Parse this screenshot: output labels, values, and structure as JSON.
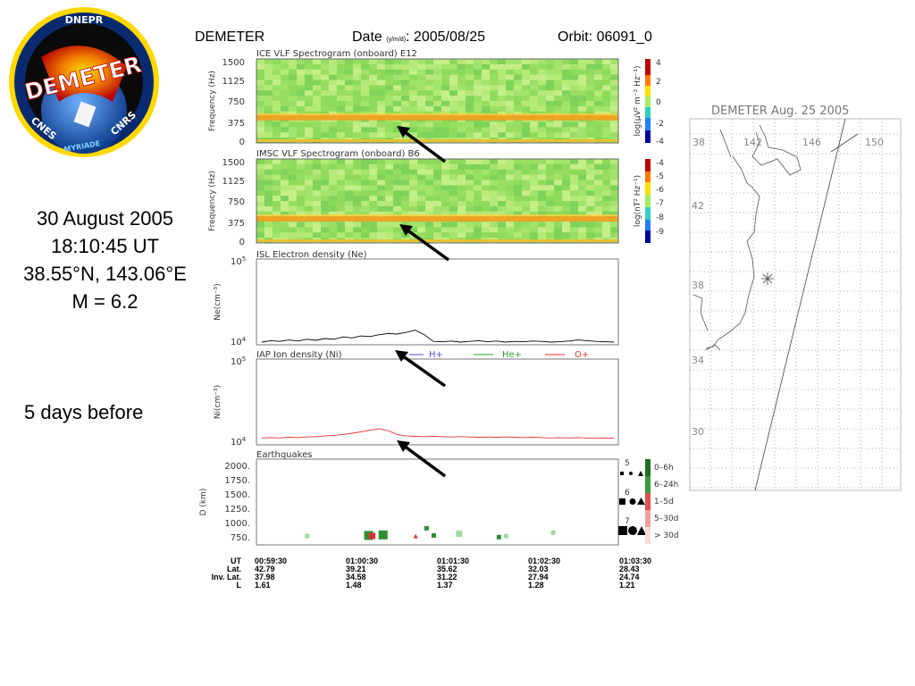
{
  "header": {
    "satellite": "DEMETER",
    "date_label": "Date",
    "date_format": "(y/m/d)",
    "date_value": ": 2005/08/25",
    "orbit": "Orbit: 06091_0"
  },
  "logo": {
    "top_text": "DNEPR",
    "main_text": "DEMETER",
    "left_text": "CNES",
    "right_text": "CNRS",
    "bottom_text": "MYRIADE"
  },
  "event": {
    "date": "30 August 2005",
    "time": "18:10:45 UT",
    "coords": "38.55°N, 143.06°E",
    "magnitude": "M = 6.2",
    "offset": "5 days before"
  },
  "map": {
    "title": "DEMETER Aug. 25 2005",
    "lon_labels": [
      "38",
      "142",
      "146",
      "150"
    ],
    "lat_labels": [
      "42",
      "38",
      "34",
      "30"
    ]
  },
  "panels": {
    "ice": {
      "title": "ICE VLF Spectrogram (onboard) E12",
      "ylabel": "Frequency (Hz)",
      "yticks": [
        "1500",
        "1125",
        "750",
        "375",
        "0"
      ],
      "cbar_label": "log(µV² m⁻² Hz⁻¹)",
      "cbar_ticks": [
        "4",
        "2",
        "0",
        "-2",
        "-4"
      ]
    },
    "imsc": {
      "title": "IMSC VLF Spectrogram (onboard) B6",
      "ylabel": "Frequency (Hz)",
      "yticks": [
        "1500",
        "1125",
        "750",
        "375",
        "0"
      ],
      "cbar_label": "log(nT² Hz⁻¹)",
      "cbar_ticks": [
        "-4",
        "-5",
        "-6",
        "-7",
        "-8",
        "-9"
      ]
    },
    "isl": {
      "title": "ISL Electron density (Ne)",
      "ylabel": "Ne(cm⁻³)",
      "ytick_top": "10",
      "ytick_top_exp": "5",
      "ytick_bot": "10",
      "ytick_bot_exp": "4"
    },
    "iap": {
      "title": "IAP Ion density (Ni)",
      "ylabel": "Ni(cm⁻³)",
      "ytick_top": "10",
      "ytick_top_exp": "5",
      "ytick_bot": "10",
      "ytick_bot_exp": "4",
      "legend": [
        "H+",
        "He+",
        "O+"
      ]
    },
    "eq": {
      "title": "Earthquakes",
      "ylabel": "D (km)",
      "yticks": [
        "2000.",
        "1750.",
        "1500.",
        "1250.",
        "1000.",
        "750."
      ],
      "mag_labels": [
        "5",
        "6",
        "7"
      ],
      "time_legend": [
        "0–6h",
        "6–24h",
        "1–5d",
        "5–30d",
        "> 30d"
      ]
    }
  },
  "colors": {
    "ne_line": "#000000",
    "h_plus": "#4a4ad0",
    "he_plus": "#2aa02a",
    "o_plus": "#e03030",
    "eq_dark_green": "#2f8f2f",
    "eq_light_green": "#9fdc9f",
    "eq_red": "#e03030"
  },
  "ut_table": {
    "labels": [
      "UT",
      "Lat.",
      "Inv. Lat.",
      "L"
    ],
    "columns": [
      [
        "00:59:30",
        "42.79",
        "37.98",
        "1.61"
      ],
      [
        "01:00:30",
        "39.21",
        "34.58",
        "1.48"
      ],
      [
        "01:01:30",
        "35.62",
        "31.22",
        "1.37"
      ],
      [
        "01:02:30",
        "32.03",
        "27.94",
        "1.28"
      ],
      [
        "01:03:30",
        "28.43",
        "24.74",
        "1.21"
      ]
    ]
  },
  "chart_data": [
    {
      "type": "heatmap",
      "title": "ICE VLF Spectrogram (onboard) E12",
      "ylabel": "Frequency (Hz)",
      "ylim": [
        0,
        1500
      ],
      "colorbar": [
        -4,
        4
      ],
      "band_hz": 450,
      "band_level": 2
    },
    {
      "type": "heatmap",
      "title": "IMSC VLF Spectrogram (onboard) B6",
      "ylabel": "Frequency (Hz)",
      "ylim": [
        0,
        1500
      ],
      "colorbar": [
        -9,
        -4
      ],
      "band_hz": 430,
      "band_level": -4.5
    },
    {
      "type": "line",
      "title": "ISL Electron density (Ne)",
      "ylabel": "Ne(cm⁻³)",
      "yscale": "log",
      "ylim": [
        10000,
        100000
      ],
      "series": [
        {
          "name": "Ne",
          "values": [
            10000,
            10400,
            10200,
            10600,
            10300,
            10800,
            10500,
            11000,
            10800,
            11500,
            11200,
            11800,
            11600,
            12200,
            12600,
            12400,
            13000,
            13800,
            12200,
            10200,
            10100,
            10300,
            10000,
            10200,
            10400,
            10100,
            10300,
            10000,
            10200,
            10100,
            10300,
            10200,
            10000,
            10100,
            10300,
            10600,
            10400,
            10200,
            10100,
            10000
          ]
        }
      ]
    },
    {
      "type": "line",
      "title": "IAP Ion density (Ni)",
      "ylabel": "Ni(cm⁻³)",
      "yscale": "log",
      "ylim": [
        10000,
        100000
      ],
      "series": [
        {
          "name": "O+",
          "values": [
            11200,
            11300,
            11200,
            11400,
            11300,
            11500,
            11600,
            11800,
            12000,
            12300,
            12700,
            13200,
            13800,
            14300,
            13600,
            12300,
            11800,
            11700,
            11600,
            11700,
            11600,
            11500,
            11600,
            11500,
            11400,
            11500,
            11400,
            11500,
            11400,
            11300,
            11400,
            11300,
            11200,
            11300,
            11200,
            11300,
            11200,
            11100,
            11200,
            11100
          ]
        }
      ]
    },
    {
      "type": "scatter",
      "title": "Earthquakes",
      "ylabel": "D (km)",
      "ylim": [
        600,
        2150
      ],
      "points": [
        {
          "t": 0.14,
          "d": 760,
          "color": "light",
          "mag": 5
        },
        {
          "t": 0.31,
          "d": 770,
          "color": "dark",
          "mag": 7
        },
        {
          "t": 0.32,
          "d": 760,
          "color": "red",
          "mag": 6
        },
        {
          "t": 0.35,
          "d": 780,
          "color": "dark",
          "mag": 7
        },
        {
          "t": 0.44,
          "d": 760,
          "color": "red",
          "mag": 5
        },
        {
          "t": 0.47,
          "d": 900,
          "color": "dark",
          "mag": 5
        },
        {
          "t": 0.49,
          "d": 770,
          "color": "dark",
          "mag": 5
        },
        {
          "t": 0.56,
          "d": 800,
          "color": "light",
          "mag": 6
        },
        {
          "t": 0.67,
          "d": 740,
          "color": "dark",
          "mag": 5
        },
        {
          "t": 0.69,
          "d": 760,
          "color": "light",
          "mag": 5
        },
        {
          "t": 0.82,
          "d": 820,
          "color": "light",
          "mag": 5
        }
      ]
    }
  ]
}
